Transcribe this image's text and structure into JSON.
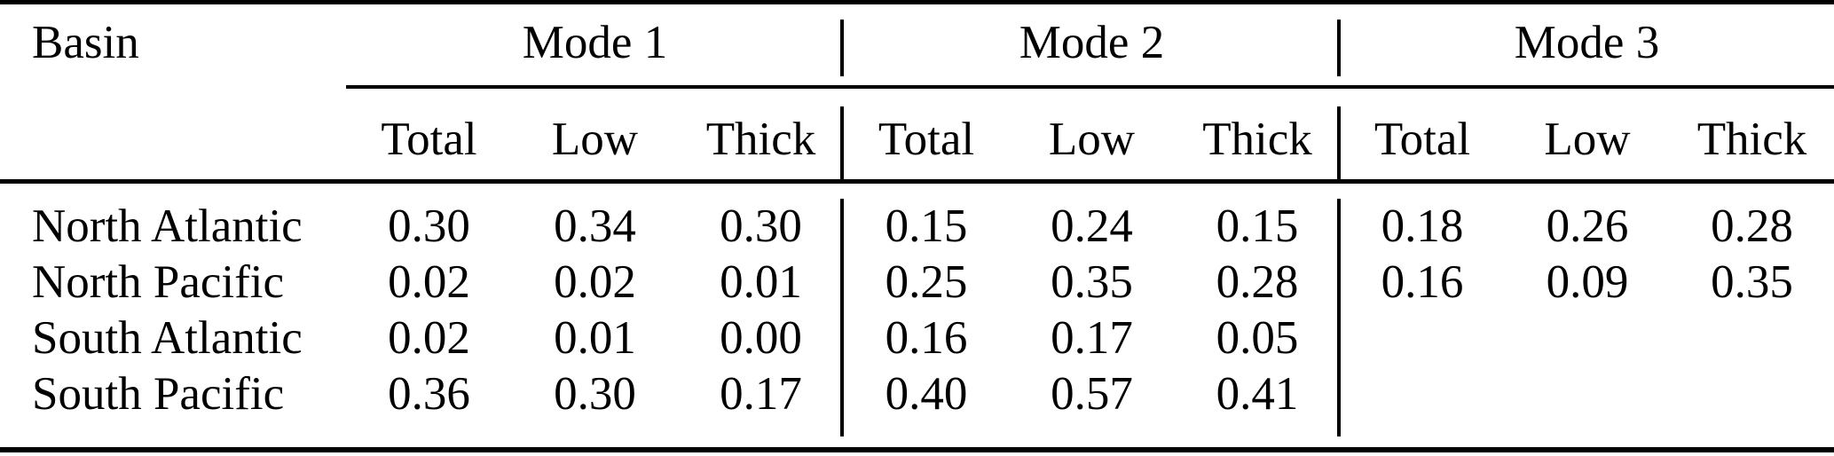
{
  "table": {
    "corner_header": "Basin",
    "group_headers": [
      "Mode 1",
      "Mode 2",
      "Mode 3"
    ],
    "column_headers": [
      "Total",
      "Low",
      "Thick",
      "Total",
      "Low",
      "Thick",
      "Total",
      "Low",
      "Thick"
    ],
    "rows": [
      {
        "basin": "North Atlantic",
        "values": [
          "0.30",
          "0.34",
          "0.30",
          "0.15",
          "0.24",
          "0.15",
          "0.18",
          "0.26",
          "0.28"
        ]
      },
      {
        "basin": "North Pacific",
        "values": [
          "0.02",
          "0.02",
          "0.01",
          "0.25",
          "0.35",
          "0.28",
          "0.16",
          "0.09",
          "0.35"
        ]
      },
      {
        "basin": "South Atlantic",
        "values": [
          "0.02",
          "0.01",
          "0.00",
          "0.16",
          "0.17",
          "0.05",
          "",
          "",
          ""
        ]
      },
      {
        "basin": "South Pacific",
        "values": [
          "0.36",
          "0.30",
          "0.17",
          "0.40",
          "0.57",
          "0.41",
          "",
          "",
          ""
        ]
      }
    ],
    "colors": {
      "text": "#000000",
      "background": "#ffffff",
      "rule": "#000000"
    }
  },
  "chart_data": {
    "type": "table",
    "title": "",
    "row_label": "Basin",
    "column_groups": [
      "Mode 1",
      "Mode 2",
      "Mode 3"
    ],
    "columns_per_group": [
      "Total",
      "Low",
      "Thick"
    ],
    "rows": [
      "North Atlantic",
      "North Pacific",
      "South Atlantic",
      "South Pacific"
    ],
    "values": [
      [
        0.3,
        0.34,
        0.3,
        0.15,
        0.24,
        0.15,
        0.18,
        0.26,
        0.28
      ],
      [
        0.02,
        0.02,
        0.01,
        0.25,
        0.35,
        0.28,
        0.16,
        0.09,
        0.35
      ],
      [
        0.02,
        0.01,
        0.0,
        0.16,
        0.17,
        0.05,
        null,
        null,
        null
      ],
      [
        0.36,
        0.3,
        0.17,
        0.4,
        0.57,
        0.41,
        null,
        null,
        null
      ]
    ]
  }
}
